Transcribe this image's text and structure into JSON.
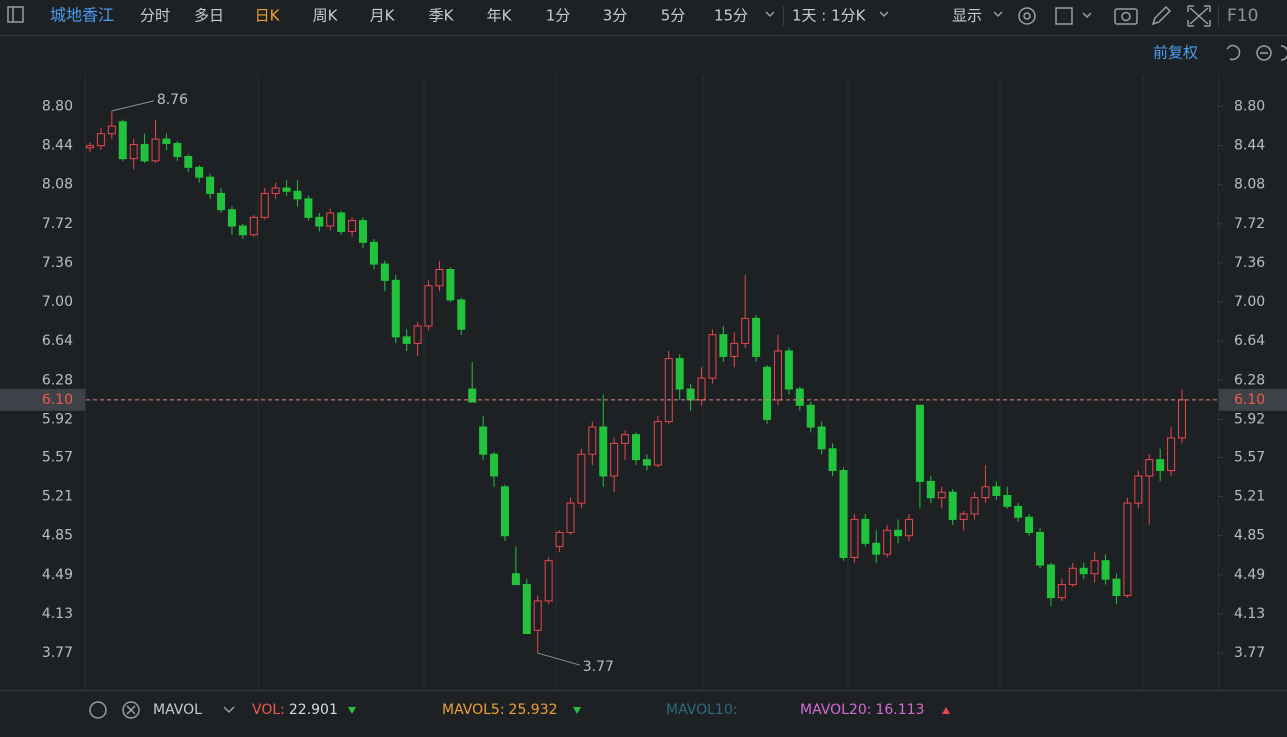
{
  "toolbar": {
    "stock": "城地香江",
    "tabs": [
      "分时",
      "多日",
      "日K",
      "周K",
      "月K",
      "季K",
      "年K",
      "1分",
      "3分",
      "5分",
      "15分"
    ],
    "active": 2,
    "range": "1天 : 1分K",
    "display": "显示",
    "f10": "F10"
  },
  "adjust": "前复权",
  "chart_data": {
    "type": "candlestick",
    "open": [
      8.42,
      8.44,
      8.55,
      8.66,
      8.32,
      8.45,
      8.3,
      8.5,
      8.46,
      8.34,
      8.24,
      8.15,
      8.0,
      7.85,
      7.7,
      7.62,
      7.78,
      8.0,
      8.05,
      8.02,
      7.95,
      7.78,
      7.7,
      7.82,
      7.65,
      7.75,
      7.55,
      7.35,
      7.2,
      6.68,
      6.62,
      6.78,
      7.15,
      7.3,
      7.02,
      6.2,
      5.85,
      5.6,
      5.3,
      4.5,
      4.4,
      3.98,
      4.25,
      4.75,
      4.88,
      5.15,
      5.6,
      5.85,
      5.4,
      5.7,
      5.78,
      5.55,
      5.5,
      5.9,
      6.48,
      6.2,
      6.1,
      6.3,
      6.7,
      6.5,
      6.62,
      6.85,
      6.4,
      6.1,
      6.55,
      6.2,
      6.05,
      5.85,
      5.65,
      5.45,
      4.65,
      5.0,
      4.78,
      4.68,
      4.9,
      4.85,
      6.05,
      5.35,
      5.2,
      5.25,
      5.0,
      5.05,
      5.2,
      5.3,
      5.22,
      5.12,
      5.02,
      4.88,
      4.58,
      4.28,
      4.4,
      4.55,
      4.5,
      4.62,
      4.45,
      4.3,
      5.15,
      5.4,
      5.55,
      5.45,
      5.75
    ],
    "high": [
      8.47,
      8.6,
      8.76,
      8.68,
      8.5,
      8.55,
      8.68,
      8.55,
      8.48,
      8.36,
      8.26,
      8.18,
      8.05,
      7.88,
      7.72,
      7.8,
      8.05,
      8.1,
      8.12,
      8.12,
      7.98,
      7.82,
      7.86,
      7.84,
      7.78,
      7.78,
      7.58,
      7.38,
      7.25,
      6.75,
      6.82,
      7.2,
      7.38,
      7.32,
      7.04,
      6.45,
      5.95,
      5.62,
      5.32,
      4.75,
      4.45,
      4.3,
      4.65,
      4.9,
      5.2,
      5.65,
      5.9,
      6.15,
      5.75,
      5.82,
      5.8,
      5.6,
      5.95,
      6.55,
      6.52,
      6.25,
      6.4,
      6.75,
      6.78,
      6.72,
      7.25,
      6.88,
      6.42,
      6.7,
      6.58,
      6.22,
      6.08,
      5.9,
      5.7,
      5.48,
      5.05,
      5.05,
      4.9,
      4.95,
      5.0,
      5.05,
      6.05,
      5.4,
      5.3,
      5.28,
      5.08,
      5.25,
      5.5,
      5.35,
      5.3,
      5.15,
      5.05,
      4.92,
      4.6,
      4.45,
      4.6,
      4.6,
      4.7,
      4.68,
      4.5,
      5.2,
      5.45,
      5.6,
      5.65,
      5.85,
      6.2
    ],
    "low": [
      8.38,
      8.4,
      8.5,
      8.3,
      8.22,
      8.28,
      8.28,
      8.4,
      8.3,
      8.2,
      8.1,
      7.95,
      7.82,
      7.62,
      7.58,
      7.6,
      7.76,
      7.95,
      7.98,
      7.88,
      7.75,
      7.65,
      7.66,
      7.62,
      7.6,
      7.5,
      7.3,
      7.1,
      6.62,
      6.55,
      6.5,
      6.74,
      7.1,
      7.0,
      6.7,
      6.08,
      5.55,
      5.3,
      4.8,
      4.4,
      3.95,
      3.77,
      4.22,
      4.7,
      4.86,
      5.1,
      5.5,
      5.3,
      5.25,
      5.55,
      5.5,
      5.45,
      5.48,
      5.88,
      6.1,
      6.0,
      6.05,
      6.25,
      6.45,
      6.4,
      6.58,
      6.45,
      5.88,
      6.05,
      6.15,
      6.0,
      5.8,
      5.6,
      5.4,
      4.62,
      4.6,
      4.75,
      4.6,
      4.65,
      4.78,
      4.8,
      5.1,
      5.15,
      5.1,
      4.95,
      4.9,
      5.0,
      5.15,
      5.18,
      5.1,
      4.98,
      4.85,
      4.55,
      4.2,
      4.25,
      4.38,
      4.45,
      4.42,
      4.4,
      4.22,
      4.28,
      5.1,
      4.95,
      5.35,
      5.4,
      5.7
    ],
    "close": [
      8.44,
      8.55,
      8.62,
      8.32,
      8.45,
      8.3,
      8.5,
      8.46,
      8.34,
      8.24,
      8.15,
      8.0,
      7.85,
      7.7,
      7.62,
      7.78,
      8.0,
      8.05,
      8.02,
      7.95,
      7.78,
      7.7,
      7.82,
      7.65,
      7.75,
      7.55,
      7.35,
      7.2,
      6.68,
      6.62,
      6.78,
      7.15,
      7.3,
      7.02,
      6.75,
      6.08,
      5.6,
      5.4,
      4.85,
      4.4,
      3.95,
      4.25,
      4.62,
      4.88,
      5.15,
      5.6,
      5.85,
      5.4,
      5.7,
      5.78,
      5.55,
      5.5,
      5.9,
      6.48,
      6.2,
      6.1,
      6.3,
      6.7,
      6.5,
      6.62,
      6.85,
      6.5,
      5.92,
      6.55,
      6.2,
      6.05,
      5.85,
      5.65,
      5.45,
      4.65,
      5.0,
      4.78,
      4.68,
      4.9,
      4.85,
      5.0,
      5.35,
      5.2,
      5.25,
      5.0,
      5.05,
      5.2,
      5.3,
      5.22,
      5.12,
      5.02,
      4.88,
      4.58,
      4.28,
      4.4,
      4.55,
      4.5,
      4.62,
      4.45,
      4.3,
      5.15,
      5.4,
      5.55,
      5.45,
      5.75,
      6.1
    ],
    "up_color": "#e8474c",
    "down_color": "#22c33c",
    "ylim": [
      3.43,
      9.09
    ],
    "yticks": [
      3.77,
      4.13,
      4.49,
      4.85,
      5.21,
      5.57,
      5.92,
      6.28,
      6.64,
      {
        "value": 7,
        "label": "7.00"
      },
      7.36,
      7.72,
      8.08,
      8.44,
      {
        "value": 8.8,
        "label": "8.80"
      }
    ],
    "last_price": {
      "value": 6.1,
      "label": "6.10"
    },
    "annotations": {
      "max": 8.76,
      "min": 3.77
    }
  },
  "volume_legend": {
    "indicator": "MAVOL",
    "items": [
      {
        "name": "VOL:",
        "value": 22.901,
        "color": "#f0594a"
      },
      {
        "name": "MAVOL5:",
        "value": 25.932,
        "color": "#f0a030"
      },
      {
        "name": "MAVOL10:",
        "color": "#2b6b80"
      },
      {
        "name": "MAVOL20:",
        "value": 16.113,
        "color": "#d46ad4"
      }
    ]
  }
}
